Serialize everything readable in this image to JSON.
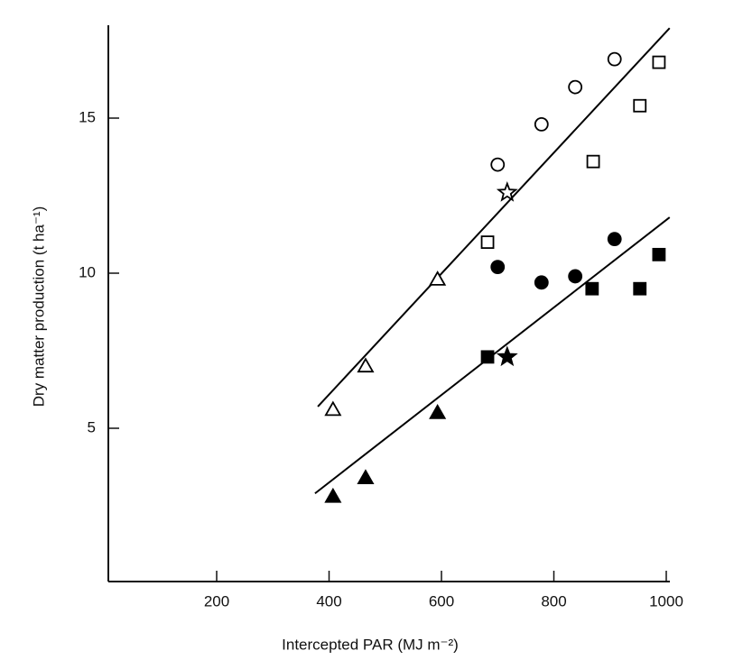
{
  "chart_data": {
    "type": "scatter",
    "x_label": "Intercepted PAR (MJ m⁻²)",
    "y_label": "Dry matter production (t ha⁻¹)",
    "xlim": [
      0,
      1000
    ],
    "ylim": [
      0,
      18
    ],
    "xticks": [
      200,
      400,
      600,
      800,
      1000
    ],
    "yticks": [
      5,
      10,
      15
    ],
    "series": [
      {
        "marker": "circle",
        "filled": false,
        "color": "#000000",
        "x": [
          700,
          778,
          838,
          908
        ],
        "values": [
          13.5,
          14.8,
          16.0,
          16.9
        ]
      },
      {
        "marker": "square",
        "filled": false,
        "color": "#000000",
        "x": [
          682,
          870,
          953,
          987
        ],
        "values": [
          11.0,
          13.6,
          15.4,
          16.8
        ]
      },
      {
        "marker": "triangle",
        "filled": false,
        "color": "#000000",
        "x": [
          407,
          465,
          593
        ],
        "values": [
          5.6,
          7.0,
          9.8
        ]
      },
      {
        "marker": "star",
        "filled": false,
        "color": "#000000",
        "x": [
          717
        ],
        "values": [
          12.6
        ]
      },
      {
        "marker": "circle",
        "filled": true,
        "color": "#000000",
        "x": [
          700,
          778,
          838,
          908
        ],
        "values": [
          10.2,
          9.7,
          9.9,
          11.1
        ]
      },
      {
        "marker": "square",
        "filled": true,
        "color": "#000000",
        "x": [
          682,
          868,
          953,
          987
        ],
        "values": [
          7.3,
          9.5,
          9.5,
          10.6
        ]
      },
      {
        "marker": "triangle",
        "filled": true,
        "color": "#000000",
        "x": [
          407,
          465,
          593
        ],
        "values": [
          2.8,
          3.4,
          5.5
        ]
      },
      {
        "marker": "star",
        "filled": true,
        "color": "#000000",
        "x": [
          717
        ],
        "values": [
          7.3
        ]
      }
    ],
    "lines": [
      {
        "color": "#000000",
        "x": [
          380,
          1006
        ],
        "values": [
          5.7,
          17.9
        ]
      },
      {
        "color": "#000000",
        "x": [
          375,
          1006
        ],
        "values": [
          2.9,
          11.8
        ]
      }
    ]
  }
}
